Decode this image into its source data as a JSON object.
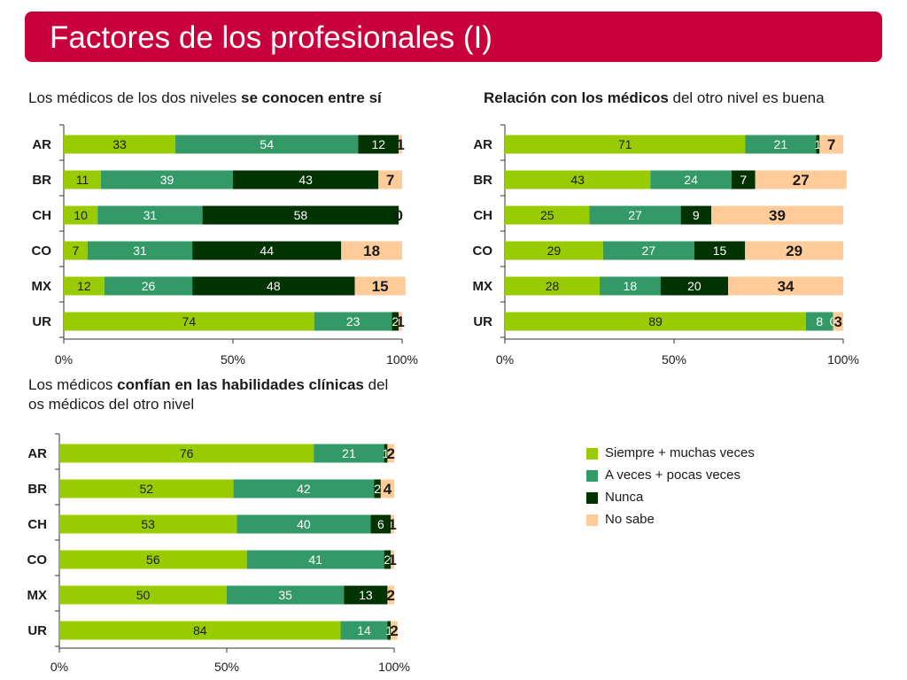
{
  "header": {
    "title": "Factores de los profesionales (I)"
  },
  "colors": {
    "title_bg": "#c8003c",
    "siempre": "#99cc00",
    "a_veces": "#339966",
    "nunca": "#003300",
    "no_sabe": "#ffcc99"
  },
  "subtitles": {
    "left_a": "Los médicos de los dos niveles ",
    "left_b": "se conocen entre sí",
    "right_a": "Relación con los médicos",
    "right_b": " del otro nivel es buena",
    "bottom_a": "Los médicos ",
    "bottom_b": "confían en las habilidades clínicas",
    "bottom_c": " del",
    "bottom_d": "os médicos del otro nivel"
  },
  "legend": {
    "items": [
      {
        "label": "Siempre + muchas veces",
        "color": "#99cc00"
      },
      {
        "label": "A veces + pocas veces",
        "color": "#339966"
      },
      {
        "label": "Nunca",
        "color": "#003300"
      },
      {
        "label": "No sabe",
        "color": "#ffcc99"
      }
    ]
  },
  "chart_data": [
    {
      "type": "bar",
      "orientation": "horizontal",
      "stacked": true,
      "title": "Los médicos de los dos niveles se conocen entre sí",
      "categories": [
        "AR",
        "BR",
        "CH",
        "CO",
        "MX",
        "UR"
      ],
      "xticks": [
        "0%",
        "50%",
        "100%"
      ],
      "xlim": [
        0,
        100
      ],
      "series": [
        {
          "name": "Siempre + muchas veces",
          "values": [
            33,
            11,
            10,
            7,
            12,
            74
          ]
        },
        {
          "name": "A veces + pocas veces",
          "values": [
            54,
            39,
            31,
            31,
            26,
            23
          ]
        },
        {
          "name": "Nunca",
          "values": [
            12,
            43,
            58,
            44,
            48,
            2
          ]
        },
        {
          "name": "No sabe",
          "values": [
            1,
            7,
            0,
            18,
            15,
            1
          ]
        }
      ]
    },
    {
      "type": "bar",
      "orientation": "horizontal",
      "stacked": true,
      "title": "Relación con los médicos del otro nivel es buena",
      "categories": [
        "AR",
        "BR",
        "CH",
        "CO",
        "MX",
        "UR"
      ],
      "xticks": [
        "0%",
        "50%",
        "100%"
      ],
      "xlim": [
        0,
        100
      ],
      "series": [
        {
          "name": "Siempre + muchas veces",
          "values": [
            71,
            43,
            25,
            29,
            28,
            89
          ]
        },
        {
          "name": "A veces + pocas veces",
          "values": [
            21,
            24,
            27,
            27,
            18,
            8
          ]
        },
        {
          "name": "Nunca",
          "values": [
            1,
            7,
            9,
            15,
            20,
            0
          ]
        },
        {
          "name": "No sabe",
          "values": [
            7,
            27,
            39,
            29,
            34,
            3
          ]
        }
      ]
    },
    {
      "type": "bar",
      "orientation": "horizontal",
      "stacked": true,
      "title": "Los médicos confían en las habilidades clínicas del os médicos del otro nivel",
      "categories": [
        "AR",
        "BR",
        "CH",
        "CO",
        "MX",
        "UR"
      ],
      "xticks": [
        "0%",
        "50%",
        "100%"
      ],
      "xlim": [
        0,
        100
      ],
      "series": [
        {
          "name": "Siempre + muchas veces",
          "values": [
            76,
            52,
            53,
            56,
            50,
            84
          ]
        },
        {
          "name": "A veces + pocas veces",
          "values": [
            21,
            42,
            40,
            41,
            35,
            14
          ]
        },
        {
          "name": "Nunca",
          "values": [
            1,
            2,
            6,
            2,
            13,
            1
          ]
        },
        {
          "name": "No sabe",
          "values": [
            2,
            4,
            1,
            1,
            2,
            2
          ]
        }
      ]
    }
  ]
}
